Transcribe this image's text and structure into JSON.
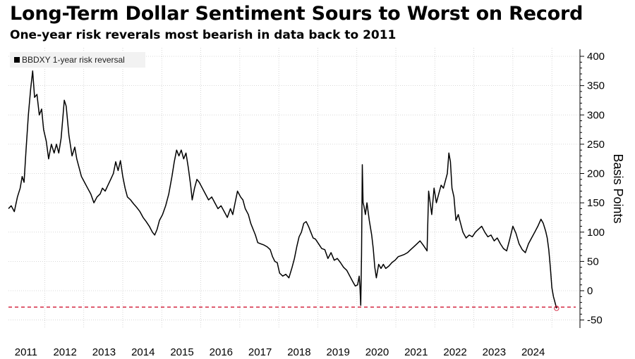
{
  "title": "Long-Term Dollar Sentiment Sours to Worst on Record",
  "subtitle": "One-year risk reverals most bearish in data back to 2011",
  "chart_data": {
    "type": "line",
    "title": "Long-Term Dollar Sentiment Sours to Worst on Record",
    "subtitle": "One-year risk reverals most bearish in data back to 2011",
    "xlabel": "",
    "ylabel": "Basis Points",
    "xlim": [
      2010.55,
      2025.2
    ],
    "ylim": [
      -55,
      405
    ],
    "x_ticks": [
      "2011",
      "2012",
      "2013",
      "2014",
      "2015",
      "2016",
      "2017",
      "2018",
      "2019",
      "2020",
      "2021",
      "2022",
      "2023",
      "2024"
    ],
    "y_ticks": [
      400,
      350,
      300,
      250,
      200,
      150,
      100,
      50,
      0,
      -50
    ],
    "grid": true,
    "legend_position": "top-left",
    "reference_line": {
      "value": -28,
      "style": "dashed",
      "color": "#d6334c"
    },
    "series": [
      {
        "name": "BBDXY 1-year risk reversal",
        "color": "#000000",
        "points": [
          [
            2010.55,
            140
          ],
          [
            2010.62,
            145
          ],
          [
            2010.7,
            135
          ],
          [
            2010.78,
            160
          ],
          [
            2010.85,
            175
          ],
          [
            2010.9,
            195
          ],
          [
            2010.95,
            185
          ],
          [
            2011.0,
            240
          ],
          [
            2011.06,
            300
          ],
          [
            2011.12,
            345
          ],
          [
            2011.17,
            375
          ],
          [
            2011.22,
            330
          ],
          [
            2011.28,
            335
          ],
          [
            2011.34,
            300
          ],
          [
            2011.4,
            310
          ],
          [
            2011.45,
            275
          ],
          [
            2011.52,
            255
          ],
          [
            2011.58,
            225
          ],
          [
            2011.65,
            250
          ],
          [
            2011.72,
            235
          ],
          [
            2011.78,
            250
          ],
          [
            2011.84,
            235
          ],
          [
            2011.9,
            260
          ],
          [
            2011.95,
            300
          ],
          [
            2011.98,
            325
          ],
          [
            2012.03,
            315
          ],
          [
            2012.1,
            265
          ],
          [
            2012.18,
            230
          ],
          [
            2012.25,
            245
          ],
          [
            2012.3,
            225
          ],
          [
            2012.36,
            210
          ],
          [
            2012.42,
            195
          ],
          [
            2012.5,
            185
          ],
          [
            2012.58,
            175
          ],
          [
            2012.66,
            165
          ],
          [
            2012.74,
            150
          ],
          [
            2012.82,
            160
          ],
          [
            2012.9,
            165
          ],
          [
            2012.96,
            175
          ],
          [
            2013.03,
            170
          ],
          [
            2013.1,
            180
          ],
          [
            2013.17,
            190
          ],
          [
            2013.24,
            200
          ],
          [
            2013.3,
            220
          ],
          [
            2013.36,
            205
          ],
          [
            2013.42,
            222
          ],
          [
            2013.48,
            195
          ],
          [
            2013.54,
            175
          ],
          [
            2013.6,
            160
          ],
          [
            2013.68,
            155
          ],
          [
            2013.76,
            148
          ],
          [
            2013.84,
            142
          ],
          [
            2013.92,
            135
          ],
          [
            2014.0,
            125
          ],
          [
            2014.08,
            118
          ],
          [
            2014.16,
            110
          ],
          [
            2014.24,
            100
          ],
          [
            2014.3,
            95
          ],
          [
            2014.36,
            105
          ],
          [
            2014.42,
            120
          ],
          [
            2014.5,
            130
          ],
          [
            2014.58,
            145
          ],
          [
            2014.66,
            165
          ],
          [
            2014.74,
            195
          ],
          [
            2014.8,
            220
          ],
          [
            2014.86,
            240
          ],
          [
            2014.92,
            230
          ],
          [
            2014.98,
            240
          ],
          [
            2015.04,
            225
          ],
          [
            2015.1,
            235
          ],
          [
            2015.16,
            210
          ],
          [
            2015.22,
            180
          ],
          [
            2015.26,
            155
          ],
          [
            2015.32,
            175
          ],
          [
            2015.38,
            190
          ],
          [
            2015.44,
            185
          ],
          [
            2015.52,
            175
          ],
          [
            2015.6,
            165
          ],
          [
            2015.68,
            155
          ],
          [
            2015.76,
            160
          ],
          [
            2015.84,
            150
          ],
          [
            2015.92,
            140
          ],
          [
            2016.0,
            145
          ],
          [
            2016.08,
            135
          ],
          [
            2016.16,
            125
          ],
          [
            2016.24,
            140
          ],
          [
            2016.3,
            130
          ],
          [
            2016.36,
            150
          ],
          [
            2016.42,
            170
          ],
          [
            2016.5,
            160
          ],
          [
            2016.56,
            155
          ],
          [
            2016.62,
            140
          ],
          [
            2016.7,
            130
          ],
          [
            2016.76,
            115
          ],
          [
            2016.82,
            105
          ],
          [
            2016.88,
            95
          ],
          [
            2016.94,
            82
          ],
          [
            2017.02,
            80
          ],
          [
            2017.1,
            78
          ],
          [
            2017.18,
            75
          ],
          [
            2017.26,
            70
          ],
          [
            2017.32,
            58
          ],
          [
            2017.38,
            50
          ],
          [
            2017.44,
            48
          ],
          [
            2017.5,
            30
          ],
          [
            2017.58,
            25
          ],
          [
            2017.66,
            28
          ],
          [
            2017.74,
            22
          ],
          [
            2017.82,
            40
          ],
          [
            2017.88,
            55
          ],
          [
            2017.94,
            75
          ],
          [
            2018.0,
            92
          ],
          [
            2018.06,
            100
          ],
          [
            2018.12,
            115
          ],
          [
            2018.18,
            118
          ],
          [
            2018.24,
            110
          ],
          [
            2018.3,
            100
          ],
          [
            2018.36,
            90
          ],
          [
            2018.42,
            88
          ],
          [
            2018.5,
            80
          ],
          [
            2018.58,
            72
          ],
          [
            2018.66,
            70
          ],
          [
            2018.74,
            55
          ],
          [
            2018.82,
            65
          ],
          [
            2018.9,
            52
          ],
          [
            2018.98,
            55
          ],
          [
            2019.06,
            48
          ],
          [
            2019.14,
            40
          ],
          [
            2019.22,
            35
          ],
          [
            2019.3,
            25
          ],
          [
            2019.38,
            15
          ],
          [
            2019.44,
            8
          ],
          [
            2019.5,
            10
          ],
          [
            2019.54,
            25
          ],
          [
            2019.56,
            5
          ],
          [
            2019.58,
            -25
          ],
          [
            2019.6,
            60
          ],
          [
            2019.62,
            215
          ],
          [
            2019.64,
            150
          ],
          [
            2019.66,
            145
          ],
          [
            2019.7,
            130
          ],
          [
            2019.74,
            150
          ],
          [
            2019.8,
            120
          ],
          [
            2019.86,
            95
          ],
          [
            2019.9,
            72
          ],
          [
            2019.94,
            40
          ],
          [
            2019.98,
            22
          ],
          [
            2020.04,
            45
          ],
          [
            2020.1,
            38
          ],
          [
            2020.16,
            45
          ],
          [
            2020.22,
            38
          ],
          [
            2020.3,
            42
          ],
          [
            2020.38,
            48
          ],
          [
            2020.46,
            52
          ],
          [
            2020.54,
            58
          ],
          [
            2020.62,
            60
          ],
          [
            2020.7,
            62
          ],
          [
            2020.78,
            65
          ],
          [
            2020.86,
            70
          ],
          [
            2020.94,
            75
          ],
          [
            2021.02,
            80
          ],
          [
            2021.1,
            85
          ],
          [
            2021.18,
            78
          ],
          [
            2021.24,
            72
          ],
          [
            2021.28,
            68
          ],
          [
            2021.32,
            170
          ],
          [
            2021.36,
            150
          ],
          [
            2021.4,
            130
          ],
          [
            2021.46,
            175
          ],
          [
            2021.52,
            150
          ],
          [
            2021.58,
            165
          ],
          [
            2021.64,
            180
          ],
          [
            2021.7,
            175
          ],
          [
            2021.76,
            190
          ],
          [
            2021.8,
            200
          ],
          [
            2021.84,
            235
          ],
          [
            2021.88,
            220
          ],
          [
            2021.92,
            175
          ],
          [
            2021.97,
            160
          ],
          [
            2022.02,
            120
          ],
          [
            2022.08,
            130
          ],
          [
            2022.14,
            115
          ],
          [
            2022.2,
            100
          ],
          [
            2022.28,
            90
          ],
          [
            2022.36,
            95
          ],
          [
            2022.44,
            92
          ],
          [
            2022.52,
            100
          ],
          [
            2022.6,
            105
          ],
          [
            2022.68,
            110
          ],
          [
            2022.76,
            100
          ],
          [
            2022.84,
            92
          ],
          [
            2022.92,
            95
          ],
          [
            2023.0,
            85
          ],
          [
            2023.08,
            90
          ],
          [
            2023.16,
            80
          ],
          [
            2023.24,
            72
          ],
          [
            2023.32,
            68
          ],
          [
            2023.4,
            88
          ],
          [
            2023.48,
            110
          ],
          [
            2023.56,
            98
          ],
          [
            2023.64,
            80
          ],
          [
            2023.72,
            70
          ],
          [
            2023.8,
            65
          ],
          [
            2023.88,
            80
          ],
          [
            2023.96,
            90
          ],
          [
            2024.04,
            100
          ],
          [
            2024.12,
            110
          ],
          [
            2024.2,
            122
          ],
          [
            2024.26,
            115
          ],
          [
            2024.32,
            102
          ],
          [
            2024.36,
            90
          ],
          [
            2024.4,
            70
          ],
          [
            2024.44,
            40
          ],
          [
            2024.48,
            5
          ],
          [
            2024.52,
            -10
          ],
          [
            2024.56,
            -20
          ],
          [
            2024.6,
            -30
          ]
        ]
      }
    ]
  }
}
